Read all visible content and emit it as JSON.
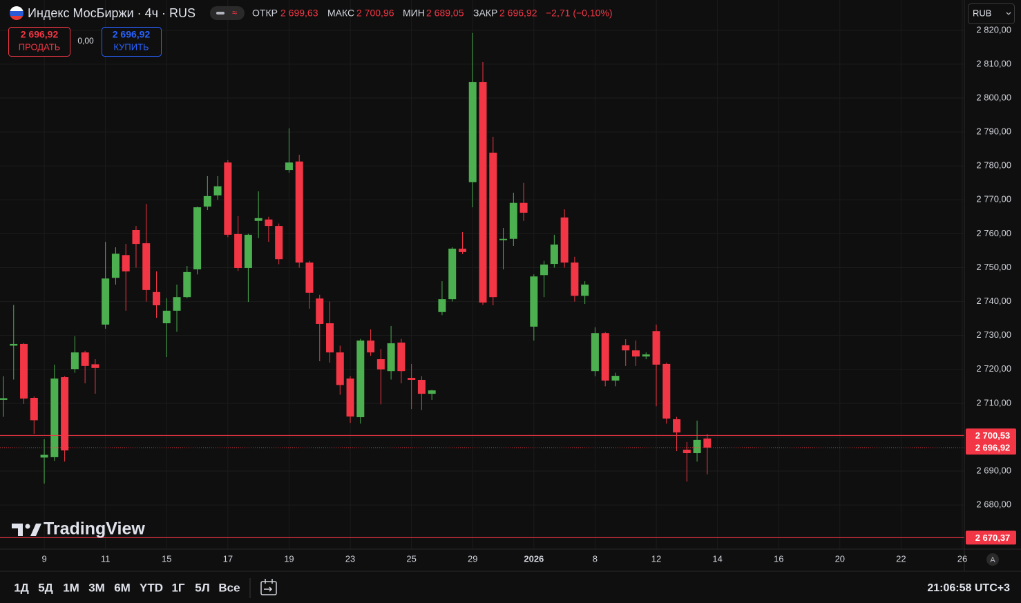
{
  "header": {
    "title": "Индекс МосБиржи · 4ч · RUS",
    "open_label": "ОТКР",
    "open": "2 699,63",
    "high_label": "МАКС",
    "high": "2 700,96",
    "low_label": "МИН",
    "low": "2 689,05",
    "close_label": "ЗАКР",
    "close": "2 696,92",
    "change": "−2,71 (−0,10%)"
  },
  "trade": {
    "sell_price": "2 696,92",
    "sell_label": "ПРОДАТЬ",
    "spread": "0,00",
    "buy_price": "2 696,92",
    "buy_label": "КУПИТЬ"
  },
  "currency": "RUB",
  "logo": "TradingView",
  "toolbar": {
    "ranges": [
      "1Д",
      "5Д",
      "1М",
      "3М",
      "6М",
      "YTD",
      "1Г",
      "5Л",
      "Все"
    ],
    "time": "21:06:58 UTC+3",
    "auto": "A"
  },
  "chart_data": {
    "type": "candlestick",
    "up_color": "#4caf50",
    "down_color": "#f23645",
    "grid": true,
    "categories": [
      null,
      null,
      null,
      null,
      "9",
      null,
      null,
      null,
      null,
      null,
      "11",
      null,
      null,
      null,
      null,
      null,
      "15",
      null,
      null,
      null,
      null,
      null,
      "17",
      null,
      null,
      null,
      null,
      null,
      "19",
      null,
      null,
      null,
      null,
      null,
      "23",
      null,
      null,
      null,
      null,
      null,
      "25",
      null,
      null,
      null,
      null,
      null,
      "29",
      null,
      null,
      null,
      null,
      null,
      "2026",
      null,
      null,
      null,
      null,
      null,
      "8",
      null,
      null,
      null,
      null,
      null,
      "12",
      null,
      null,
      null,
      null,
      null,
      "14",
      null,
      null,
      null,
      null,
      null,
      "16",
      null,
      null,
      null,
      null,
      null,
      "20",
      null,
      null,
      null,
      null,
      null,
      "22",
      null,
      null,
      null,
      null,
      null,
      "26"
    ],
    "open": [
      2711,
      2727,
      2727.5,
      2711.6,
      2694,
      2694.1,
      2717.7,
      2720.1,
      2725,
      2721.5,
      2733.2,
      2747,
      2753.7,
      2761.1,
      2757.2,
      2742.8,
      2733.6,
      2737.3,
      2741.3,
      2749.5,
      2768,
      2771.3,
      2781,
      2759.9,
      2749.9,
      2763.8,
      2764.2,
      2762.3,
      2778.8,
      2781.3,
      2751.5,
      2740.9,
      2733.6,
      2725,
      2717.3,
      2705.9,
      2728.5,
      2723,
      2719.5,
      2727.9,
      2717.5,
      2716.9,
      2712.8,
      2736.9,
      2740.7,
      2755.6,
      2775.2,
      2804.7,
      2783.9,
      2758.1,
      2758.5,
      2769.1,
      2732.6,
      2747.8,
      2751.1,
      2764.8,
      2751.5,
      2741.7,
      2719.5,
      2730.7,
      2716.7,
      2727.1,
      2725.6,
      2723.8,
      2731.3,
      2721.6,
      2705.3,
      2696.3,
      2695.3,
      2699.63,
      null,
      null,
      null,
      null,
      null,
      null,
      null,
      null,
      null,
      null,
      null,
      null,
      null,
      null,
      null,
      null,
      null,
      null,
      null,
      null,
      null,
      null,
      null,
      null,
      null
    ],
    "high": [
      2718,
      2739,
      2727.8,
      2712,
      2699.4,
      2721.4,
      2718,
      2729.8,
      2725.5,
      2723,
      2757.6,
      2756,
      2757,
      2762.3,
      2768.8,
      2748.9,
      2741,
      2745,
      2750.5,
      2768,
      2777,
      2777,
      2781.7,
      2765.2,
      2760,
      2772.5,
      2765,
      2763,
      2791.1,
      2783.3,
      2752,
      2742,
      2740,
      2727,
      2718,
      2729,
      2731.8,
      2726,
      2732.8,
      2729,
      2721.6,
      2718,
      2714,
      2746,
      2756,
      2760.5,
      2819.2,
      2810.6,
      2788.6,
      2761.7,
      2772.1,
      2775,
      2748,
      2752,
      2759.7,
      2767.2,
      2753.2,
      2746,
      2732.4,
      2731,
      2719,
      2728.9,
      2728.5,
      2725,
      2733.2,
      2722,
      2706,
      2698.6,
      2704.9,
      2700.96,
      null,
      null,
      null,
      null,
      null,
      null,
      null,
      null,
      null,
      null,
      null,
      null,
      null,
      null,
      null,
      null,
      null,
      null,
      null,
      null,
      null,
      null,
      null,
      null,
      null
    ],
    "low": [
      2706,
      2717,
      2709.8,
      2701,
      2686.3,
      2693,
      2692.8,
      2719,
      2715.9,
      2712.8,
      2732,
      2745,
      2737.3,
      2750,
      2740,
      2735.2,
      2723.6,
      2731.1,
      2741,
      2748,
      2767,
      2770,
      2759,
      2749,
      2739.9,
      2758.7,
      2757.6,
      2751,
      2778,
      2750,
      2737.9,
      2722.4,
      2722,
      2712.5,
      2704.2,
      2704,
      2724,
      2709.7,
      2717,
      2715.9,
      2708.3,
      2708,
      2711,
      2736,
      2740,
      2754,
      2767.8,
      2739,
      2738.9,
      2749.5,
      2756.4,
      2763.8,
      2728.5,
      2741.3,
      2750,
      2750,
      2740,
      2739.3,
      2718,
      2715,
      2715,
      2721,
      2721,
      2723,
      2709.1,
      2704,
      2695.9,
      2686.9,
      2692.8,
      2689.05,
      null,
      null,
      null,
      null,
      null,
      null,
      null,
      null,
      null,
      null,
      null,
      null,
      null,
      null,
      null,
      null,
      null,
      null,
      null,
      null,
      null,
      null,
      null,
      null,
      null
    ],
    "close": [
      2711.5,
      2727.5,
      2711.4,
      2705,
      2694.8,
      2717.3,
      2696.1,
      2725,
      2721,
      2720.4,
      2746.8,
      2754.1,
      2748.9,
      2757,
      2743.4,
      2738.9,
      2737.3,
      2741.3,
      2748.7,
      2767.8,
      2771.1,
      2774,
      2759.7,
      2749.9,
      2759.7,
      2764.6,
      2762.3,
      2752.5,
      2781,
      2751.5,
      2742.6,
      2733.4,
      2725,
      2715.4,
      2706.1,
      2728.5,
      2725,
      2720,
      2727.7,
      2719.5,
      2716.9,
      2712.8,
      2713.8,
      2740.7,
      2755.6,
      2754.6,
      2804.7,
      2739.7,
      2741.3,
      2758.5,
      2769.1,
      2766.2,
      2747.4,
      2750.9,
      2756.8,
      2751.5,
      2741.7,
      2745,
      2730.7,
      2716.7,
      2718.1,
      2725.6,
      2723.8,
      2724.4,
      2721.4,
      2705.5,
      2701.4,
      2695.3,
      2699.2,
      2696.92,
      null,
      null,
      null,
      null,
      null,
      null,
      null,
      null,
      null,
      null,
      null,
      null,
      null,
      null,
      null,
      null,
      null,
      null,
      null,
      null,
      null,
      null,
      null,
      null,
      null
    ],
    "ylim": [
      2667.4,
      2822.0
    ],
    "yticks": [
      {
        "value": 2680,
        "label": "2 680,00"
      },
      {
        "value": 2690,
        "label": "2 690,00"
      },
      {
        "value": 2700,
        "label": "2 700,00"
      },
      {
        "value": 2710,
        "label": "2 710,00"
      },
      {
        "value": 2720,
        "label": "2 720,00"
      },
      {
        "value": 2730,
        "label": "2 730,00"
      },
      {
        "value": 2740,
        "label": "2 740,00"
      },
      {
        "value": 2750,
        "label": "2 750,00"
      },
      {
        "value": 2760,
        "label": "2 760,00"
      },
      {
        "value": 2770,
        "label": "2 770,00"
      },
      {
        "value": 2780,
        "label": "2 780,00"
      },
      {
        "value": 2790,
        "label": "2 790,00"
      },
      {
        "value": 2800,
        "label": "2 800,00"
      },
      {
        "value": 2810,
        "label": "2 810,00"
      },
      {
        "value": 2820,
        "label": "2 820,00"
      }
    ],
    "price_lines": [
      {
        "value": 2700.53,
        "label": "2 700,53",
        "color": "#f23645",
        "style": "solid"
      },
      {
        "value": 2696.92,
        "label": "2 696,92",
        "color": "#f23645",
        "style": "dotted"
      },
      {
        "value": 2670.37,
        "label": "2 670,37",
        "color": "#f23645",
        "style": "solid"
      }
    ]
  }
}
